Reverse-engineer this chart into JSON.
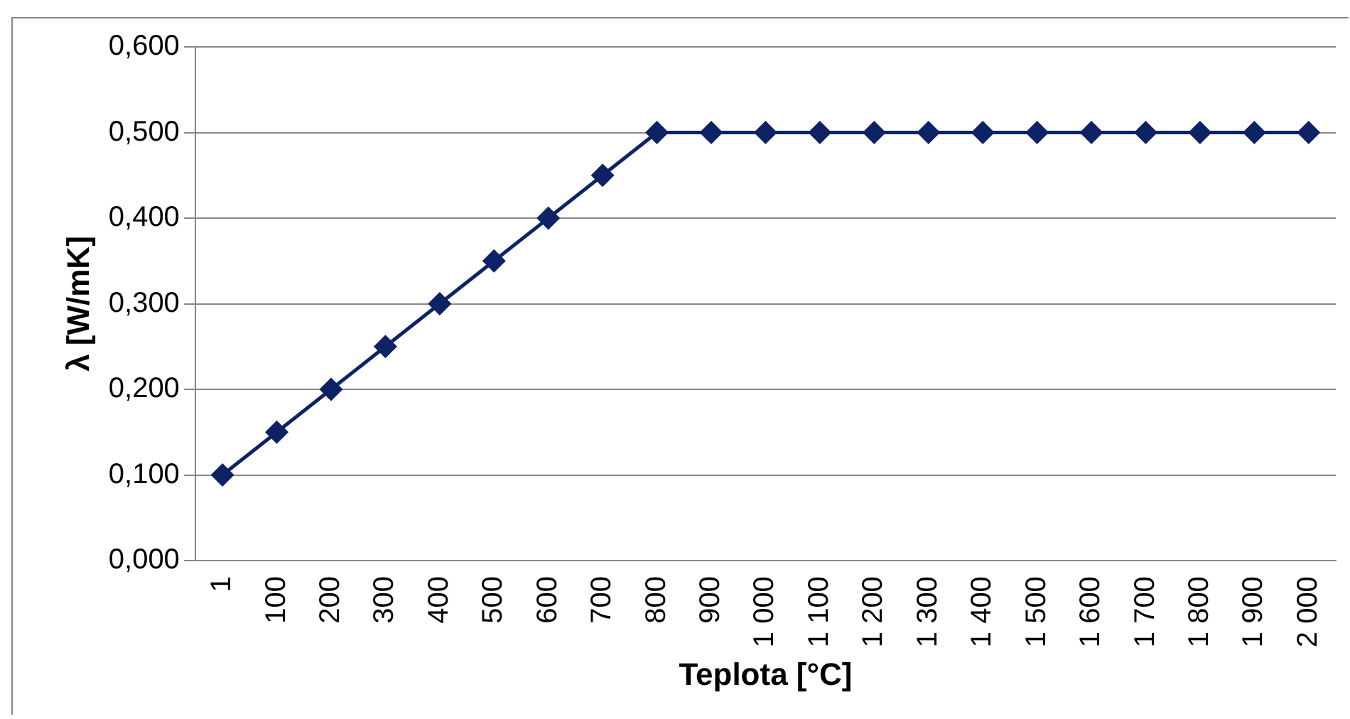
{
  "chart_data": {
    "type": "line",
    "xlabel": "Teplota [°C]",
    "ylabel": "λ [W/mK]",
    "categories": [
      "1",
      "100",
      "200",
      "300",
      "400",
      "500",
      "600",
      "700",
      "800",
      "900",
      "1 000",
      "1 100",
      "1 200",
      "1 300",
      "1 400",
      "1 500",
      "1 600",
      "1 700",
      "1 800",
      "1 900",
      "2 000"
    ],
    "series": [
      {
        "color": "#0d2366",
        "values": [
          0.1,
          0.15,
          0.2,
          0.25,
          0.3,
          0.35,
          0.4,
          0.45,
          0.5,
          0.5,
          0.5,
          0.5,
          0.5,
          0.5,
          0.5,
          0.5,
          0.5,
          0.5,
          0.5,
          0.5,
          0.5
        ]
      }
    ],
    "ylim": [
      0,
      0.6
    ],
    "yticks": [
      {
        "value": 0,
        "label": "0,000"
      },
      {
        "value": 0.1,
        "label": "0,100"
      },
      {
        "value": 0.2,
        "label": "0,200"
      },
      {
        "value": 0.3,
        "label": "0,300"
      },
      {
        "value": 0.4,
        "label": "0,400"
      },
      {
        "value": 0.5,
        "label": "0,500"
      },
      {
        "value": 0.6,
        "label": "0,600"
      }
    ],
    "grid": "y",
    "legend": false,
    "marker": "diamond",
    "line_style": "solid"
  }
}
